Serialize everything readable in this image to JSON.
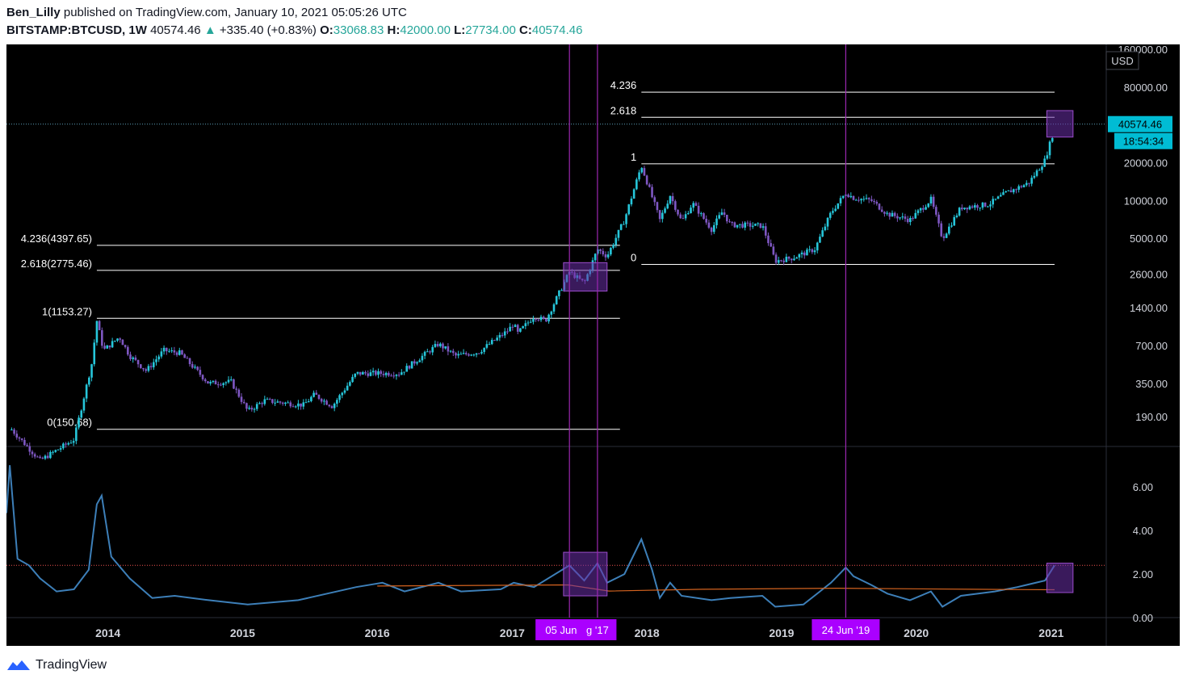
{
  "header": {
    "author": "Ben_Lilly",
    "published_text": "published on TradingView.com, January 10, 2021 05:05:26 UTC",
    "symbol": "BITSTAMP:BTCUSD, 1W",
    "last": "40574.46",
    "change_arrow": "▲",
    "change": "+335.40 (+0.83%)",
    "o_label": "O:",
    "o_value": "33068.83",
    "h_label": "H:",
    "h_value": "42000.00",
    "l_label": "L:",
    "l_value": "27734.00",
    "c_label": "C:",
    "c_value": "40574.46"
  },
  "footer": {
    "brand": "TradingView",
    "logo_icon": "tradingview-logo-icon"
  },
  "colors": {
    "background": "#000000",
    "candle_up": "#26c6da",
    "candle_down": "#7e57c2",
    "indicator_line": "#3d7fb8",
    "threshold_line": "#ef5350",
    "moving_average": "#d4631f",
    "highlight_box": "#6a2fa8",
    "vertical_marker": "#9c27b0",
    "price_tag": "#00bcd4"
  },
  "chart_data": [
    {
      "type": "candlestick",
      "scale": "log",
      "currency_label": "USD",
      "ylim": [
        110,
        175000
      ],
      "price_ticks": [
        "160000.00",
        "80000.00",
        "40000.00",
        "20000.00",
        "10000.00",
        "5000.00",
        "2600.00",
        "1400.00",
        "700.00",
        "350.00",
        "190.00"
      ],
      "last_price_tag": "40574.46",
      "countdown_tag": "18:54:34",
      "path_points": [
        {
          "date": "2013-04-15",
          "price": 150
        },
        {
          "date": "2013-07-01",
          "price": 85
        },
        {
          "date": "2013-10-01",
          "price": 125
        },
        {
          "date": "2013-11-18",
          "price": 500
        },
        {
          "date": "2013-12-02",
          "price": 1100
        },
        {
          "date": "2013-12-20",
          "price": 640
        },
        {
          "date": "2014-02-01",
          "price": 820
        },
        {
          "date": "2014-03-01",
          "price": 580
        },
        {
          "date": "2014-04-15",
          "price": 440
        },
        {
          "date": "2014-06-01",
          "price": 640
        },
        {
          "date": "2014-07-15",
          "price": 610
        },
        {
          "date": "2014-10-01",
          "price": 350
        },
        {
          "date": "2014-12-01",
          "price": 360
        },
        {
          "date": "2015-01-15",
          "price": 210
        },
        {
          "date": "2015-03-01",
          "price": 255
        },
        {
          "date": "2015-06-15",
          "price": 235
        },
        {
          "date": "2015-07-15",
          "price": 285
        },
        {
          "date": "2015-09-01",
          "price": 230
        },
        {
          "date": "2015-11-05",
          "price": 420
        },
        {
          "date": "2016-01-15",
          "price": 420
        },
        {
          "date": "2016-03-01",
          "price": 420
        },
        {
          "date": "2016-06-15",
          "price": 720
        },
        {
          "date": "2016-08-01",
          "price": 580
        },
        {
          "date": "2016-10-01",
          "price": 620
        },
        {
          "date": "2016-12-20",
          "price": 920
        },
        {
          "date": "2017-01-05",
          "price": 1050
        },
        {
          "date": "2017-01-15",
          "price": 870
        },
        {
          "date": "2017-03-01",
          "price": 1200
        },
        {
          "date": "2017-04-01",
          "price": 1100
        },
        {
          "date": "2017-06-05",
          "price": 2700
        },
        {
          "date": "2017-07-15",
          "price": 2200
        },
        {
          "date": "2017-08-20",
          "price": 4100
        },
        {
          "date": "2017-09-15",
          "price": 3600
        },
        {
          "date": "2017-11-01",
          "price": 7000
        },
        {
          "date": "2017-12-17",
          "price": 19000
        },
        {
          "date": "2018-02-05",
          "price": 7000
        },
        {
          "date": "2018-03-05",
          "price": 11000
        },
        {
          "date": "2018-04-05",
          "price": 6800
        },
        {
          "date": "2018-05-05",
          "price": 9500
        },
        {
          "date": "2018-06-25",
          "price": 5900
        },
        {
          "date": "2018-07-25",
          "price": 8200
        },
        {
          "date": "2018-08-15",
          "price": 6400
        },
        {
          "date": "2018-11-10",
          "price": 6300
        },
        {
          "date": "2018-12-15",
          "price": 3300
        },
        {
          "date": "2019-02-01",
          "price": 3500
        },
        {
          "date": "2019-04-01",
          "price": 4100
        },
        {
          "date": "2019-05-15",
          "price": 8000
        },
        {
          "date": "2019-06-24",
          "price": 11500
        },
        {
          "date": "2019-07-15",
          "price": 10500
        },
        {
          "date": "2019-09-01",
          "price": 10000
        },
        {
          "date": "2019-10-15",
          "price": 7800
        },
        {
          "date": "2019-12-15",
          "price": 7000
        },
        {
          "date": "2020-02-10",
          "price": 10200
        },
        {
          "date": "2020-03-12",
          "price": 5000
        },
        {
          "date": "2020-05-01",
          "price": 8800
        },
        {
          "date": "2020-07-15",
          "price": 9300
        },
        {
          "date": "2020-09-01",
          "price": 11500
        },
        {
          "date": "2020-11-01",
          "price": 13800
        },
        {
          "date": "2020-12-15",
          "price": 21000
        },
        {
          "date": "2021-01-04",
          "price": 33000
        },
        {
          "date": "2021-01-10",
          "price": 40574.46
        }
      ],
      "fib_sets": [
        {
          "date_range": [
            "2013-12-02",
            "2017-10-20"
          ],
          "label_side": "left",
          "levels": [
            {
              "label": "4.236(4397.65)",
              "price": 4397.65
            },
            {
              "label": "2.618(2775.46)",
              "price": 2775.46
            },
            {
              "label": "1(1153.27)",
              "price": 1153.27
            },
            {
              "label": "0(150.68)",
              "price": 150.68
            }
          ]
        },
        {
          "date_range": [
            "2017-12-17",
            "2021-01-10"
          ],
          "label_side": "left",
          "levels": [
            {
              "label": "4.236",
              "price": 73000
            },
            {
              "label": "2.618",
              "price": 46000
            },
            {
              "label": "1",
              "price": 19600
            },
            {
              "label": "0",
              "price": 3100
            }
          ]
        }
      ],
      "highlight_boxes": [
        {
          "date_range": [
            "2017-05-20",
            "2017-09-15"
          ],
          "price_range": [
            1900,
            3200
          ]
        },
        {
          "date_range": [
            "2020-12-20",
            "2021-03-01"
          ],
          "price_range": [
            32000,
            52000
          ]
        }
      ]
    },
    {
      "type": "line",
      "panel": "indicator",
      "ylim": [
        0,
        7.6
      ],
      "y_ticks": [
        "6.00",
        "4.00",
        "2.00",
        "0.00"
      ],
      "threshold": 2.4,
      "series": [
        {
          "points": [
            {
              "date": "2013-04-01",
              "value": 4.8
            },
            {
              "date": "2013-04-10",
              "value": 7.0
            },
            {
              "date": "2013-05-01",
              "value": 2.7
            },
            {
              "date": "2013-06-01",
              "value": 2.4
            },
            {
              "date": "2013-07-01",
              "value": 1.8
            },
            {
              "date": "2013-08-15",
              "value": 1.2
            },
            {
              "date": "2013-10-01",
              "value": 1.3
            },
            {
              "date": "2013-11-10",
              "value": 2.2
            },
            {
              "date": "2013-12-02",
              "value": 5.2
            },
            {
              "date": "2013-12-15",
              "value": 5.6
            },
            {
              "date": "2014-01-10",
              "value": 2.8
            },
            {
              "date": "2014-03-01",
              "value": 1.8
            },
            {
              "date": "2014-05-01",
              "value": 0.9
            },
            {
              "date": "2014-07-01",
              "value": 1.0
            },
            {
              "date": "2014-10-01",
              "value": 0.8
            },
            {
              "date": "2015-01-15",
              "value": 0.6
            },
            {
              "date": "2015-06-01",
              "value": 0.8
            },
            {
              "date": "2015-11-05",
              "value": 1.4
            },
            {
              "date": "2016-01-15",
              "value": 1.6
            },
            {
              "date": "2016-03-15",
              "value": 1.2
            },
            {
              "date": "2016-06-15",
              "value": 1.6
            },
            {
              "date": "2016-08-15",
              "value": 1.2
            },
            {
              "date": "2016-12-01",
              "value": 1.3
            },
            {
              "date": "2017-01-05",
              "value": 1.6
            },
            {
              "date": "2017-03-01",
              "value": 1.4
            },
            {
              "date": "2017-06-05",
              "value": 2.4
            },
            {
              "date": "2017-07-15",
              "value": 1.7
            },
            {
              "date": "2017-08-20",
              "value": 2.5
            },
            {
              "date": "2017-09-15",
              "value": 1.6
            },
            {
              "date": "2017-11-01",
              "value": 2.0
            },
            {
              "date": "2017-12-17",
              "value": 3.6
            },
            {
              "date": "2018-01-15",
              "value": 2.2
            },
            {
              "date": "2018-02-05",
              "value": 0.9
            },
            {
              "date": "2018-03-05",
              "value": 1.6
            },
            {
              "date": "2018-04-05",
              "value": 1.0
            },
            {
              "date": "2018-06-25",
              "value": 0.8
            },
            {
              "date": "2018-08-15",
              "value": 0.9
            },
            {
              "date": "2018-11-10",
              "value": 1.0
            },
            {
              "date": "2018-12-15",
              "value": 0.5
            },
            {
              "date": "2019-03-01",
              "value": 0.6
            },
            {
              "date": "2019-05-15",
              "value": 1.6
            },
            {
              "date": "2019-06-24",
              "value": 2.3
            },
            {
              "date": "2019-07-15",
              "value": 1.9
            },
            {
              "date": "2019-09-01",
              "value": 1.5
            },
            {
              "date": "2019-10-15",
              "value": 1.1
            },
            {
              "date": "2019-12-15",
              "value": 0.8
            },
            {
              "date": "2020-02-10",
              "value": 1.2
            },
            {
              "date": "2020-03-12",
              "value": 0.5
            },
            {
              "date": "2020-05-01",
              "value": 1.0
            },
            {
              "date": "2020-08-01",
              "value": 1.2
            },
            {
              "date": "2020-10-01",
              "value": 1.4
            },
            {
              "date": "2020-12-15",
              "value": 1.7
            },
            {
              "date": "2021-01-10",
              "value": 2.4
            }
          ]
        },
        {
          "points": [
            {
              "date": "2016-01-01",
              "value": 1.45
            },
            {
              "date": "2017-06-01",
              "value": 1.5
            },
            {
              "date": "2017-09-20",
              "value": 1.22
            },
            {
              "date": "2018-06-01",
              "value": 1.3
            },
            {
              "date": "2019-06-01",
              "value": 1.35
            },
            {
              "date": "2020-06-01",
              "value": 1.3
            },
            {
              "date": "2021-01-10",
              "value": 1.28
            }
          ]
        }
      ],
      "highlight_boxes": [
        {
          "date_range": [
            "2017-05-20",
            "2017-09-15"
          ],
          "value_range": [
            1.0,
            3.0
          ]
        },
        {
          "date_range": [
            "2020-12-20",
            "2021-03-01"
          ],
          "value_range": [
            1.15,
            2.5
          ]
        }
      ]
    }
  ],
  "time_axis": {
    "ticks": [
      {
        "label": "2014",
        "date": "2014-01-01"
      },
      {
        "label": "2015",
        "date": "2015-01-01"
      },
      {
        "label": "2016",
        "date": "2016-01-01"
      },
      {
        "label": "2017",
        "date": "2017-01-01"
      },
      {
        "label": "2018",
        "date": "2018-01-01"
      },
      {
        "label": "2019",
        "date": "2019-01-01"
      },
      {
        "label": "2020",
        "date": "2020-01-01"
      },
      {
        "label": "2021",
        "date": "2021-01-01"
      }
    ],
    "markers": [
      {
        "date": "2017-06-05",
        "label": "05 Jun '17"
      },
      {
        "date": "2017-08-20",
        "label": "g '17"
      },
      {
        "date": "2019-06-24",
        "label": "24 Jun '19"
      }
    ]
  }
}
